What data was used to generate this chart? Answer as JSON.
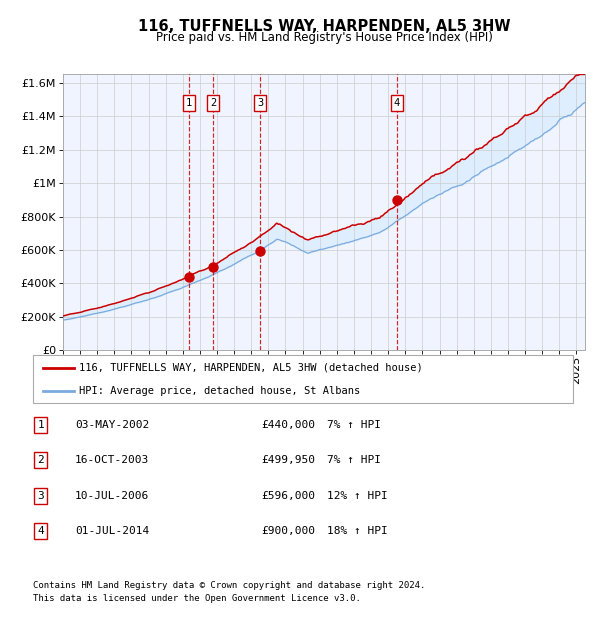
{
  "title": "116, TUFFNELLS WAY, HARPENDEN, AL5 3HW",
  "subtitle": "Price paid vs. HM Land Registry's House Price Index (HPI)",
  "legend_line1": "116, TUFFNELLS WAY, HARPENDEN, AL5 3HW (detached house)",
  "legend_line2": "HPI: Average price, detached house, St Albans",
  "footnote1": "Contains HM Land Registry data © Crown copyright and database right 2024.",
  "footnote2": "This data is licensed under the Open Government Licence v3.0.",
  "red_color": "#cc0000",
  "blue_color": "#7aaadd",
  "fill_color": "#ddeeff",
  "bg_color": "#f0f4ff",
  "purchases": [
    {
      "num": 1,
      "date": "03-MAY-2002",
      "price": 440000,
      "hpi": "7% ↑ HPI",
      "year": 2002.35
    },
    {
      "num": 2,
      "date": "16-OCT-2003",
      "price": 499950,
      "hpi": "7% ↑ HPI",
      "year": 2003.79
    },
    {
      "num": 3,
      "date": "10-JUL-2006",
      "price": 596000,
      "hpi": "12% ↑ HPI",
      "year": 2006.52
    },
    {
      "num": 4,
      "date": "01-JUL-2014",
      "price": 900000,
      "hpi": "18% ↑ HPI",
      "year": 2014.5
    }
  ],
  "ylim": [
    0,
    1650000
  ],
  "xlim_start": 1995.0,
  "xlim_end": 2025.5,
  "yticks": [
    0,
    200000,
    400000,
    600000,
    800000,
    1000000,
    1200000,
    1400000,
    1600000
  ],
  "ytick_labels": [
    "£0",
    "£200K",
    "£400K",
    "£600K",
    "£800K",
    "£1M",
    "£1.2M",
    "£1.4M",
    "£1.6M"
  ]
}
